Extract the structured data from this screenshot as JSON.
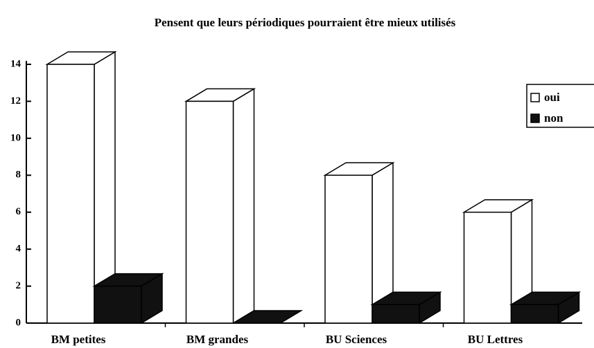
{
  "chart_data": {
    "type": "bar3d",
    "title": "Pensent que leurs périodiques pourraient être mieux utilisés",
    "categories": [
      "BM  petites",
      "BM grandes",
      "BU Sciences",
      "BU Lettres"
    ],
    "series": [
      {
        "name": "oui",
        "color": "#ffffff",
        "values": [
          14,
          12,
          8,
          6
        ]
      },
      {
        "name": "non",
        "color": "#111111",
        "values": [
          2,
          0,
          1,
          1
        ]
      }
    ],
    "ylim": [
      0,
      14
    ],
    "yticks": [
      0,
      2,
      4,
      6,
      8,
      10,
      12,
      14
    ],
    "legend": "top-right"
  }
}
